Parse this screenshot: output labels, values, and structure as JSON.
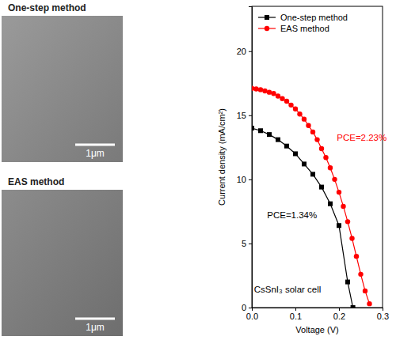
{
  "images": [
    {
      "title": "One-step method",
      "scale_bar": "1μm"
    },
    {
      "title": "EAS method",
      "scale_bar": "1μm"
    }
  ],
  "chart_data": {
    "type": "line",
    "x_label": "Voltage (V)",
    "y_label": "Current density (mA/cm²)",
    "xlim": [
      0,
      0.3
    ],
    "xticks": [
      {
        "value": 0,
        "label": "0.0"
      },
      0.1,
      0.2,
      0.3
    ],
    "ylim": [
      0,
      23.5
    ],
    "yticks": [
      0,
      5,
      10,
      15,
      20
    ],
    "legend": "upper left",
    "series": [
      {
        "name": "One-step method",
        "color": "#000000",
        "marker": "square",
        "x": [
          0,
          0.02,
          0.04,
          0.06,
          0.08,
          0.1,
          0.12,
          0.14,
          0.16,
          0.18,
          0.2,
          0.22,
          0.232
        ],
        "values": [
          14.0,
          13.8,
          13.5,
          13.1,
          12.6,
          12.0,
          11.2,
          10.4,
          9.4,
          8.1,
          6.4,
          2.0,
          0
        ]
      },
      {
        "name": "EAS method",
        "color": "#ff0000",
        "marker": "circle",
        "x": [
          0,
          0.01,
          0.02,
          0.03,
          0.04,
          0.05,
          0.06,
          0.07,
          0.08,
          0.09,
          0.1,
          0.11,
          0.12,
          0.13,
          0.14,
          0.15,
          0.16,
          0.17,
          0.18,
          0.19,
          0.2,
          0.21,
          0.22,
          0.23,
          0.24,
          0.25,
          0.26,
          0.27
        ],
        "values": [
          17.1,
          17.05,
          17.0,
          16.9,
          16.8,
          16.7,
          16.5,
          16.3,
          16.1,
          15.8,
          15.5,
          15.1,
          14.7,
          14.2,
          13.7,
          13.1,
          12.4,
          11.7,
          10.9,
          10.0,
          9.0,
          7.9,
          6.7,
          5.4,
          4.0,
          2.6,
          1.3,
          0.3
        ]
      }
    ],
    "annotations": [
      {
        "text": "PCE=2.23%",
        "x": 0.195,
        "y": 13,
        "color": "#ff0000"
      },
      {
        "text": "PCE=1.34%",
        "x": 0.035,
        "y": 7,
        "color": "#000000"
      },
      {
        "text": "CsSnI₃ solar cell",
        "x": 0.005,
        "y": 1.2,
        "color": "#000000"
      }
    ]
  }
}
